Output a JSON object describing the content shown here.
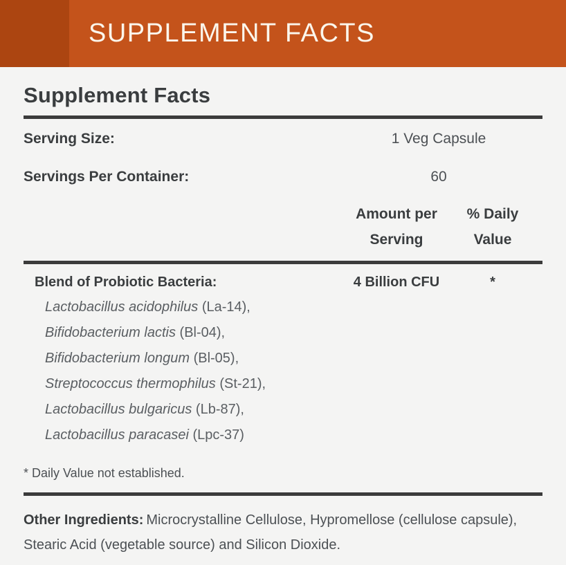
{
  "theme": {
    "banner_bg": "#C4531B",
    "banner_accent": "#AC4511",
    "banner_text": "#FBF6EC",
    "page_bg": "#F4F4F3",
    "ink_dark": "#3A3D3F",
    "ink_mid": "#4C5054",
    "ink_light": "#5A5E62",
    "rule": "#3B3B3B"
  },
  "banner": {
    "title": "SUPPLEMENT FACTS"
  },
  "panel": {
    "title": "Supplement Facts",
    "serving_size": {
      "label": "Serving Size:",
      "value": "1 Veg Capsule"
    },
    "servings_per_container": {
      "label": "Servings Per Container:",
      "value": "60"
    },
    "columns": {
      "amount": "Amount per Serving",
      "daily_value": "% Daily Value"
    },
    "blend": {
      "label": "Blend of Probiotic Bacteria:",
      "amount": "4 Billion CFU",
      "daily_value": "*",
      "items": [
        {
          "name": "Lactobacillus acidophilus",
          "strain": "(La-14),"
        },
        {
          "name": "Bifidobacterium lactis",
          "strain": "(Bl-04),"
        },
        {
          "name": "Bifidobacterium longum",
          "strain": "(Bl-05),"
        },
        {
          "name": "Streptococcus thermophilus",
          "strain": "(St-21),"
        },
        {
          "name": "Lactobacillus bulgaricus",
          "strain": "(Lb-87),"
        },
        {
          "name": "Lactobacillus paracasei",
          "strain": "(Lpc-37)"
        }
      ]
    },
    "footnote": "* Daily Value not established.",
    "other_ingredients": {
      "label": "Other Ingredients:",
      "text": "Microcrystalline Cellulose, Hypromellose (cellulose capsule), Stearic Acid (vegetable source) and Silicon Dioxide."
    }
  }
}
